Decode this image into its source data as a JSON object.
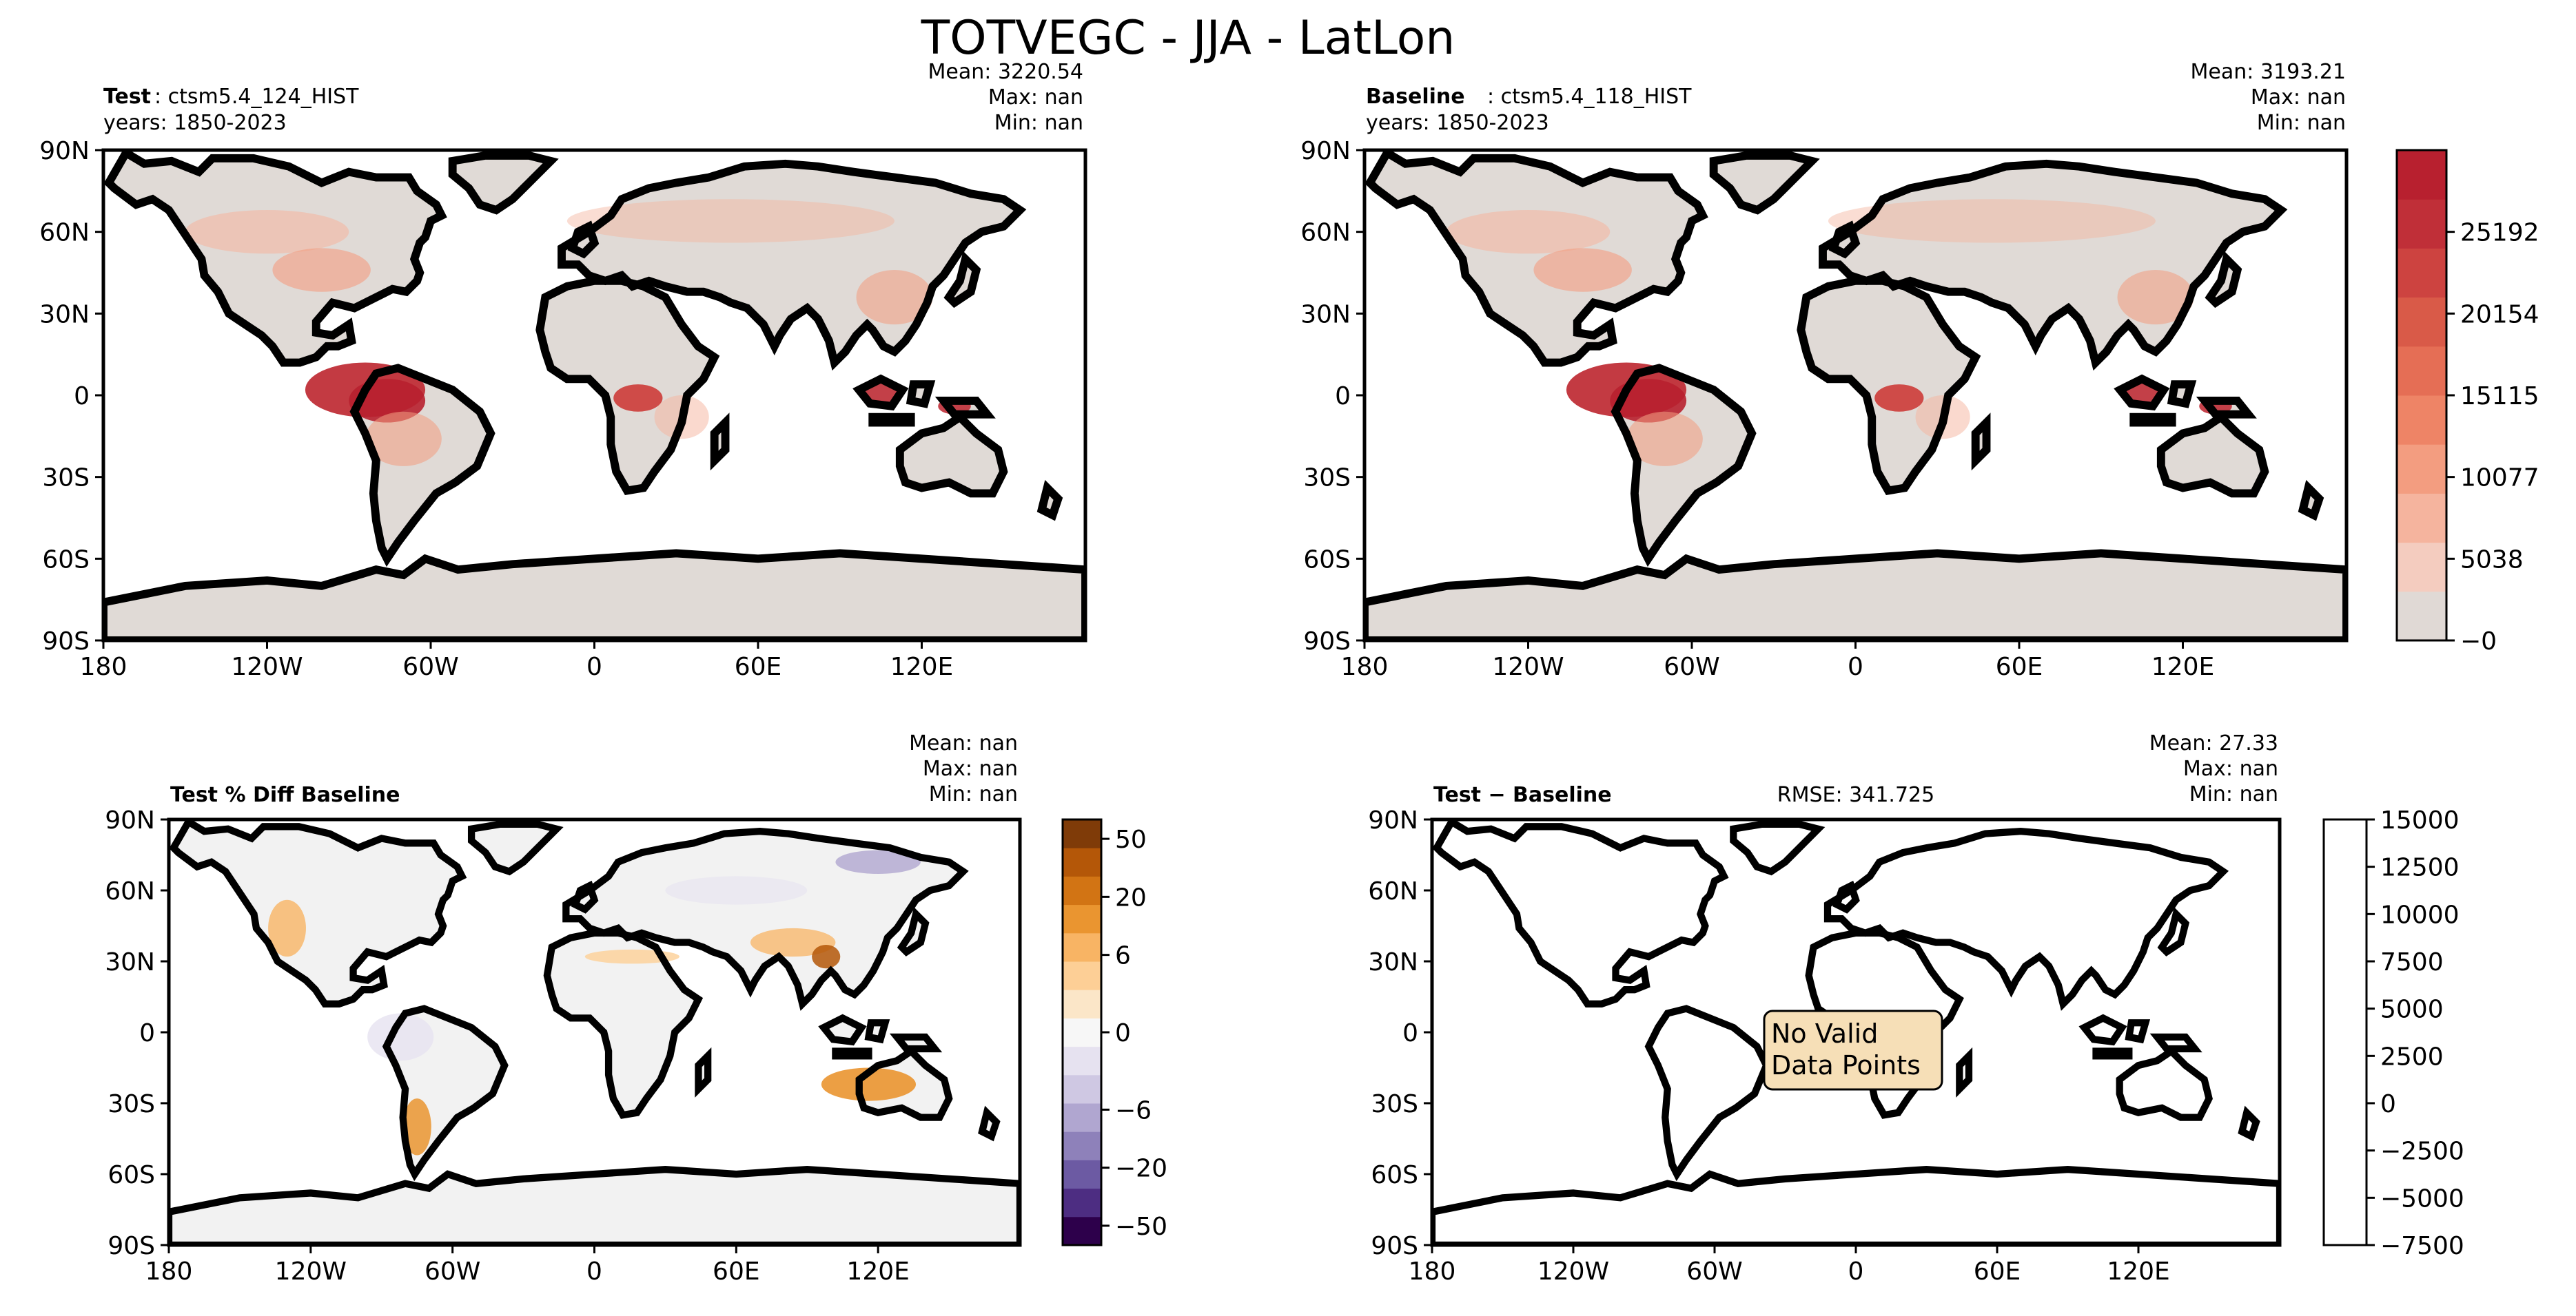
{
  "title": "TOTVEGC - JJA - LatLon",
  "colors": {
    "land": "#e0dad6",
    "diff_land": "#f2f2f2",
    "warn_box": "#f6dfb7",
    "amazon": "#c8363a",
    "congo": "#d04a45",
    "reds": [
      "#e0d9d5",
      "#f4ccbf",
      "#f5b49e",
      "#f39d80",
      "#ee8466",
      "#e56e55",
      "#d95a48",
      "#cd4340",
      "#c02f38",
      "#b8202f"
    ],
    "puor": [
      "#2d004b",
      "#4d2d82",
      "#6c5aa3",
      "#8e81ba",
      "#b0a6d0",
      "#cfc8e3",
      "#e6e2f0",
      "#f7f7f7",
      "#fbe6c8",
      "#fdcf96",
      "#f8b464",
      "#ea9530",
      "#d27414",
      "#b45708",
      "#7f3b08"
    ]
  },
  "axis_ticks": {
    "lat": [
      "90N",
      "60N",
      "30N",
      "0",
      "30S",
      "60S",
      "90S"
    ],
    "lon": [
      "180",
      "120W",
      "60W",
      "0",
      "60E",
      "120E"
    ]
  },
  "chart_data": [
    {
      "type": "heatmap",
      "panel": "test",
      "label_bold": "Test",
      "label_case": ": ctsm5.4_124_HIST",
      "years": "years: 1850-2023",
      "stats": {
        "mean_label": "Mean:",
        "mean": "3220.54",
        "max_label": "Max:",
        "max": "nan",
        "min_label": "Min:",
        "min": "nan"
      },
      "xlim": [
        -180,
        180
      ],
      "ylim": [
        -90,
        90
      ]
    },
    {
      "type": "heatmap",
      "panel": "baseline",
      "label_bold": "Baseline",
      "label_case": ": ctsm5.4_118_HIST",
      "years": "years: 1850-2023",
      "stats": {
        "mean_label": "Mean:",
        "mean": "3193.21",
        "max_label": "Max:",
        "max": "nan",
        "min_label": "Min:",
        "min": "nan"
      },
      "xlim": [
        -180,
        180
      ],
      "ylim": [
        -90,
        90
      ],
      "colorbar": {
        "ticks": [
          "25192",
          "20154",
          "15115",
          "10077",
          "5038",
          "−0"
        ],
        "values": [
          25192,
          20154,
          15115,
          10077,
          5038,
          0
        ],
        "range": [
          0,
          30230
        ]
      }
    },
    {
      "type": "heatmap",
      "panel": "pct_diff",
      "label_bold": "Test % Diff Baseline",
      "stats": {
        "mean_label": "Mean:",
        "mean": "nan",
        "max_label": "Max:",
        "max": "nan",
        "min_label": "Min:",
        "min": "nan"
      },
      "xlim": [
        -180,
        180
      ],
      "ylim": [
        -90,
        90
      ],
      "colorbar": {
        "ticks": [
          "50",
          "20",
          "6",
          "0",
          "−6",
          "−20",
          "−50"
        ],
        "values": [
          50,
          20,
          6,
          0,
          -6,
          -20,
          -50
        ]
      }
    },
    {
      "type": "heatmap",
      "panel": "abs_diff",
      "label": "Test − Baseline",
      "rmse": "RMSE: 341.725",
      "stats": {
        "mean_label": "Mean:",
        "mean": "27.33",
        "max_label": "Max:",
        "max": "nan",
        "min_label": "Min:",
        "min": "nan"
      },
      "xlim": [
        -180,
        180
      ],
      "ylim": [
        -90,
        90
      ],
      "no_data_text": [
        "No Valid",
        "Data Points"
      ],
      "colorbar": {
        "ticks": [
          "15000",
          "12500",
          "10000",
          "7500",
          "5000",
          "2500",
          "0",
          "−2500",
          "−5000",
          "−7500"
        ],
        "values": [
          15000,
          12500,
          10000,
          7500,
          5000,
          2500,
          0,
          -2500,
          -5000,
          -7500
        ],
        "range": [
          -7500,
          15000
        ]
      }
    }
  ]
}
